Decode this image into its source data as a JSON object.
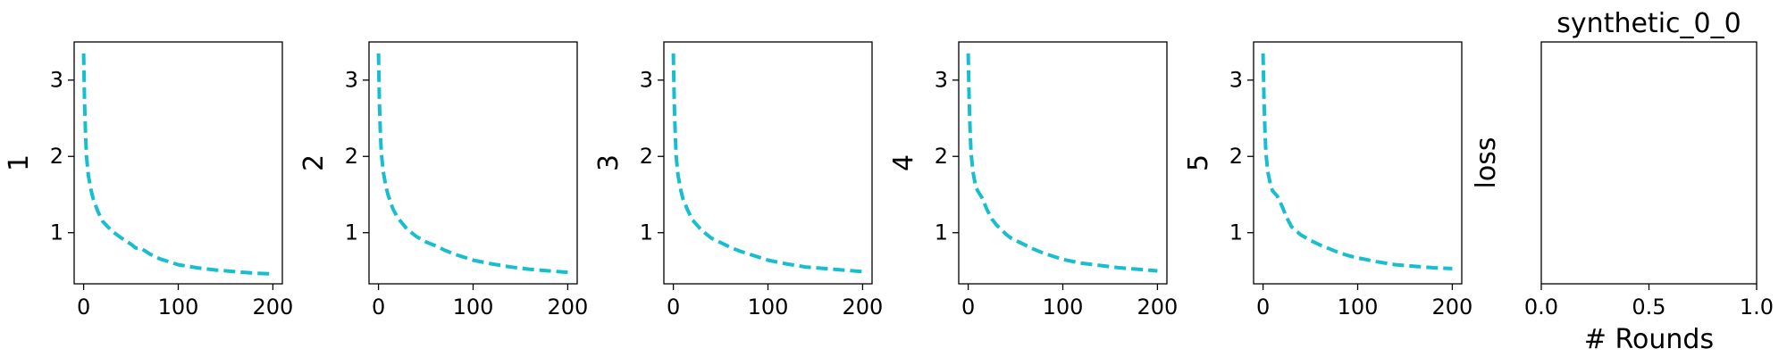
{
  "chart_data": [
    {
      "type": "line",
      "title": "",
      "xlabel": "",
      "ylabel": "1",
      "xlim": [
        -10,
        210
      ],
      "ylim": [
        0.33,
        3.5
      ],
      "xticks": [
        0,
        100,
        200
      ],
      "yticks": [
        1,
        2,
        3
      ],
      "grid": false,
      "series": [
        {
          "color": "#17becf",
          "style": "dashed",
          "x": [
            0,
            1,
            2,
            3,
            5,
            8,
            10,
            15,
            20,
            30,
            40,
            50,
            55,
            60,
            65,
            70,
            80,
            90,
            100,
            120,
            140,
            160,
            180,
            200
          ],
          "y": [
            3.35,
            2.7,
            2.3,
            2.0,
            1.75,
            1.55,
            1.45,
            1.28,
            1.15,
            1.02,
            0.93,
            0.85,
            0.8,
            0.8,
            0.76,
            0.72,
            0.66,
            0.62,
            0.58,
            0.54,
            0.51,
            0.49,
            0.47,
            0.46
          ]
        }
      ]
    },
    {
      "type": "line",
      "title": "",
      "xlabel": "",
      "ylabel": "2",
      "xlim": [
        -10,
        210
      ],
      "ylim": [
        0.33,
        3.5
      ],
      "xticks": [
        0,
        100,
        200
      ],
      "yticks": [
        1,
        2,
        3
      ],
      "grid": false,
      "series": [
        {
          "color": "#17becf",
          "style": "dashed",
          "x": [
            0,
            1,
            2,
            3,
            5,
            8,
            10,
            15,
            20,
            30,
            40,
            50,
            60,
            70,
            80,
            100,
            120,
            140,
            160,
            180,
            200
          ],
          "y": [
            3.35,
            2.7,
            2.3,
            2.05,
            1.8,
            1.6,
            1.5,
            1.32,
            1.2,
            1.05,
            0.95,
            0.88,
            0.83,
            0.77,
            0.72,
            0.64,
            0.59,
            0.55,
            0.52,
            0.5,
            0.48
          ]
        }
      ]
    },
    {
      "type": "line",
      "title": "",
      "xlabel": "",
      "ylabel": "3",
      "xlim": [
        -10,
        210
      ],
      "ylim": [
        0.33,
        3.5
      ],
      "xticks": [
        0,
        100,
        200
      ],
      "yticks": [
        1,
        2,
        3
      ],
      "grid": false,
      "series": [
        {
          "color": "#17becf",
          "style": "dashed",
          "x": [
            0,
            1,
            2,
            3,
            5,
            8,
            10,
            15,
            20,
            30,
            40,
            50,
            60,
            70,
            80,
            100,
            120,
            140,
            160,
            180,
            200
          ],
          "y": [
            3.35,
            2.7,
            2.3,
            2.0,
            1.75,
            1.55,
            1.45,
            1.3,
            1.17,
            1.03,
            0.93,
            0.87,
            0.81,
            0.76,
            0.72,
            0.64,
            0.59,
            0.55,
            0.53,
            0.51,
            0.49
          ]
        }
      ]
    },
    {
      "type": "line",
      "title": "",
      "xlabel": "",
      "ylabel": "4",
      "xlim": [
        -10,
        210
      ],
      "ylim": [
        0.33,
        3.5
      ],
      "xticks": [
        0,
        100,
        200
      ],
      "yticks": [
        1,
        2,
        3
      ],
      "grid": false,
      "series": [
        {
          "color": "#17becf",
          "style": "dashed",
          "x": [
            0,
            1,
            2,
            3,
            5,
            8,
            10,
            15,
            20,
            25,
            30,
            40,
            45,
            50,
            60,
            70,
            80,
            100,
            120,
            140,
            160,
            180,
            200
          ],
          "y": [
            3.35,
            2.75,
            2.35,
            2.05,
            1.8,
            1.6,
            1.55,
            1.45,
            1.3,
            1.18,
            1.1,
            0.98,
            0.93,
            0.9,
            0.84,
            0.78,
            0.73,
            0.65,
            0.6,
            0.57,
            0.54,
            0.52,
            0.5
          ]
        }
      ]
    },
    {
      "type": "line",
      "title": "",
      "xlabel": "",
      "ylabel": "5",
      "xlim": [
        -10,
        210
      ],
      "ylim": [
        0.33,
        3.5
      ],
      "xticks": [
        0,
        100,
        200
      ],
      "yticks": [
        1,
        2,
        3
      ],
      "grid": false,
      "series": [
        {
          "color": "#17becf",
          "style": "dashed",
          "x": [
            0,
            1,
            2,
            3,
            5,
            8,
            10,
            15,
            20,
            25,
            30,
            40,
            50,
            60,
            70,
            80,
            90,
            100,
            120,
            140,
            160,
            180,
            200
          ],
          "y": [
            3.35,
            2.75,
            2.35,
            2.05,
            1.8,
            1.62,
            1.55,
            1.48,
            1.35,
            1.2,
            1.08,
            0.97,
            0.9,
            0.84,
            0.79,
            0.74,
            0.7,
            0.67,
            0.62,
            0.58,
            0.56,
            0.54,
            0.53
          ]
        }
      ]
    },
    {
      "type": "line",
      "title": "synthetic_0_0",
      "xlabel": "# Rounds",
      "ylabel": "loss",
      "xlim": [
        0,
        1
      ],
      "ylim": [
        0,
        1
      ],
      "xticks": [
        "0.0",
        "0.5",
        "1.0"
      ],
      "yticks": [],
      "grid": false,
      "series": []
    }
  ]
}
